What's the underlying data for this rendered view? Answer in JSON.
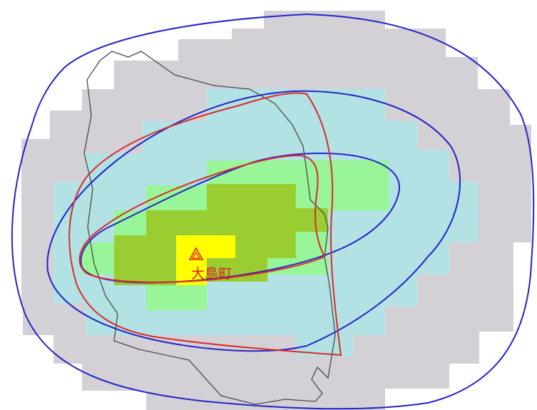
{
  "map": {
    "place_label": "大島町",
    "crater_icon": "volcano-crater-icon",
    "colors": {
      "background": "#ffffff",
      "zone_outer": "#d3d1d6",
      "zone_middle": "#b2e2e3",
      "zone_inner": "#98f598",
      "zone_core": "#9acd32",
      "zone_peak": "#ffff00",
      "contour_blue": "#2424c8",
      "contour_red": "#dc2a2a",
      "coastline": "#4a4a4a",
      "marker": "#e02020"
    }
  }
}
